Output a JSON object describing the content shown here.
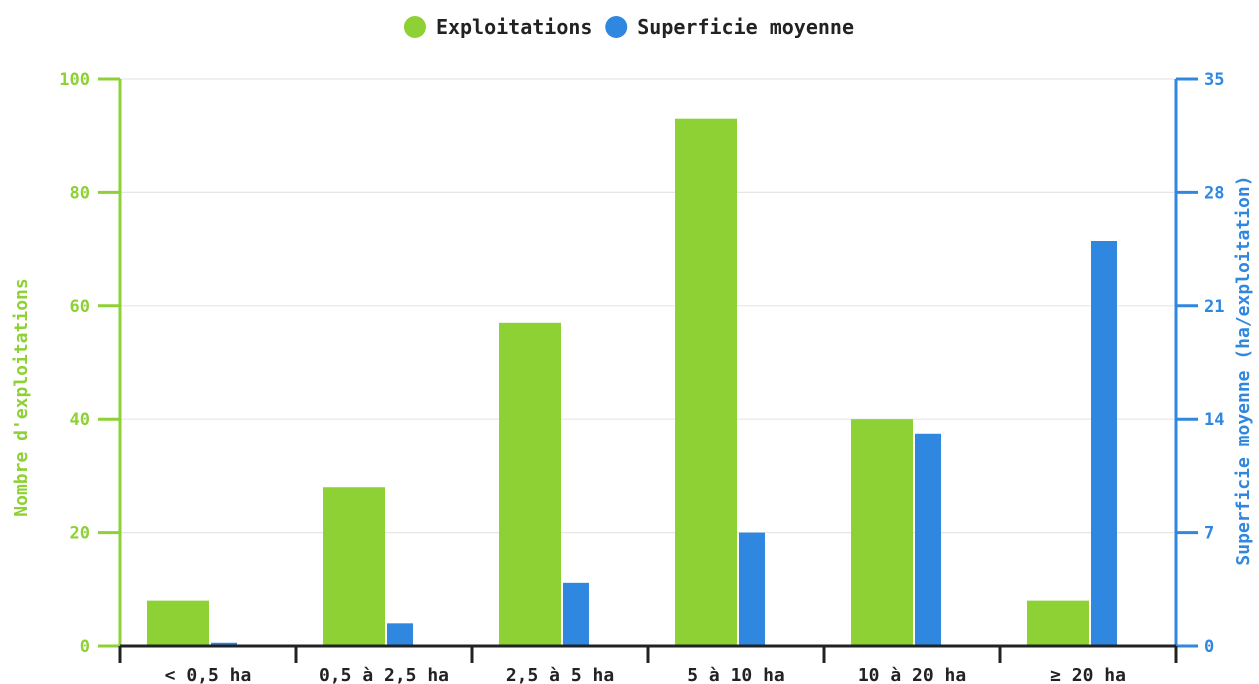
{
  "chart_data": {
    "type": "bar",
    "categories": [
      "< 0,5 ha",
      "0,5 à 2,5 ha",
      "2,5 à 5 ha",
      "5 à 10 ha",
      "10 à 20 ha",
      "≥ 20 ha"
    ],
    "series": [
      {
        "name": "Exploitations",
        "axis": "left",
        "color": "#8dd135",
        "values": [
          8,
          28,
          57,
          93,
          40,
          8
        ]
      },
      {
        "name": "Superficie moyenne",
        "axis": "right",
        "color": "#2f87e0",
        "values": [
          0.2,
          1.4,
          3.9,
          7.0,
          13.1,
          25.0
        ]
      }
    ],
    "left_axis": {
      "label": "Nombre d'exploitations",
      "ylim": [
        0,
        100
      ],
      "ticks": [
        0,
        20,
        40,
        60,
        80,
        100
      ],
      "color": "#8dd135"
    },
    "right_axis": {
      "label": "Superficie moyenne (ha/exploitation)",
      "ylim": [
        0,
        35
      ],
      "ticks": [
        0,
        7,
        14,
        21,
        28,
        35
      ],
      "color": "#2f87e0"
    },
    "legend_position": "top-center",
    "grid": true
  }
}
